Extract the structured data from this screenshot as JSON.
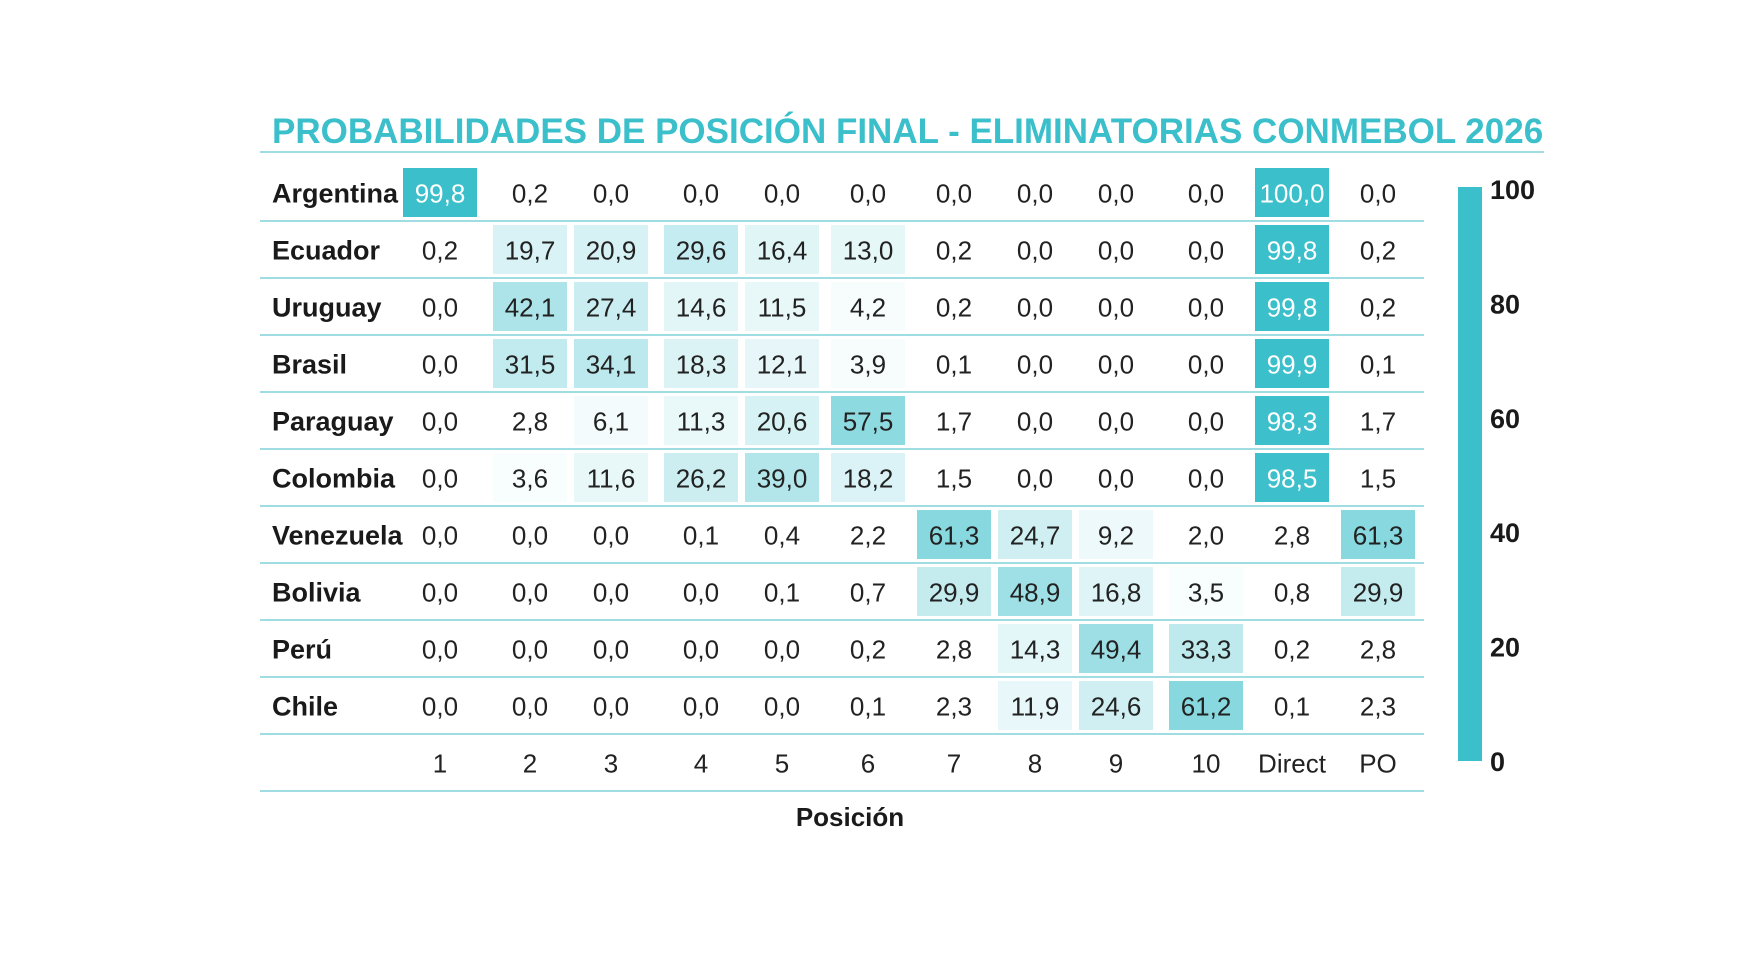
{
  "chart_data": {
    "type": "heatmap",
    "title": "PROBABILIDADES DE POSICIÓN FINAL - ELIMINATORIAS CONMEBOL 2026",
    "xlabel": "Posición",
    "ylabel": "",
    "x_categories": [
      "1",
      "2",
      "3",
      "4",
      "5",
      "6",
      "7",
      "8",
      "9",
      "10",
      "Direct",
      "PO"
    ],
    "y_categories": [
      "Argentina",
      "Ecuador",
      "Uruguay",
      "Brasil",
      "Paraguay",
      "Colombia",
      "Venezuela",
      "Bolivia",
      "Perú",
      "Chile"
    ],
    "values": [
      [
        99.8,
        0.2,
        0.0,
        0.0,
        0.0,
        0.0,
        0.0,
        0.0,
        0.0,
        0.0,
        100.0,
        0.0
      ],
      [
        0.2,
        19.7,
        20.9,
        29.6,
        16.4,
        13.0,
        0.2,
        0.0,
        0.0,
        0.0,
        99.8,
        0.2
      ],
      [
        0.0,
        42.1,
        27.4,
        14.6,
        11.5,
        4.2,
        0.2,
        0.0,
        0.0,
        0.0,
        99.8,
        0.2
      ],
      [
        0.0,
        31.5,
        34.1,
        18.3,
        12.1,
        3.9,
        0.1,
        0.0,
        0.0,
        0.0,
        99.9,
        0.1
      ],
      [
        0.0,
        2.8,
        6.1,
        11.3,
        20.6,
        57.5,
        1.7,
        0.0,
        0.0,
        0.0,
        98.3,
        1.7
      ],
      [
        0.0,
        3.6,
        11.6,
        26.2,
        39.0,
        18.2,
        1.5,
        0.0,
        0.0,
        0.0,
        98.5,
        1.5
      ],
      [
        0.0,
        0.0,
        0.0,
        0.1,
        0.4,
        2.2,
        61.3,
        24.7,
        9.2,
        2.0,
        2.8,
        61.3
      ],
      [
        0.0,
        0.0,
        0.0,
        0.0,
        0.1,
        0.7,
        29.9,
        48.9,
        16.8,
        3.5,
        0.8,
        29.9
      ],
      [
        0.0,
        0.0,
        0.0,
        0.0,
        0.0,
        0.2,
        2.8,
        14.3,
        49.4,
        33.3,
        0.2,
        2.8
      ],
      [
        0.0,
        0.0,
        0.0,
        0.0,
        0.0,
        0.1,
        2.3,
        11.9,
        24.6,
        61.2,
        0.1,
        2.3
      ]
    ],
    "value_format": "comma-decimal, 1 digit",
    "colorbar": {
      "range": [
        0,
        100
      ],
      "ticks": [
        "0",
        "20",
        "40",
        "60",
        "80",
        "100"
      ]
    },
    "colors": {
      "accent": "#3bbfcb",
      "cell_max": "#3bbfcb",
      "cell_min": "#ffffff",
      "grid_line": "#9fdde3",
      "text": "#222222"
    }
  }
}
